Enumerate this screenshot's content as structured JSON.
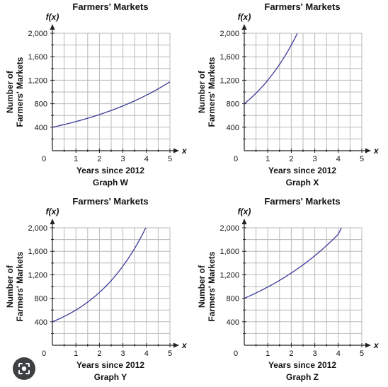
{
  "chart_data": [
    {
      "type": "line",
      "title": "Farmers' Markets",
      "caption": "Graph W",
      "xlabel": "Years since 2012",
      "ylabel": [
        "Number of",
        "Farmers' Markets"
      ],
      "function_label": "f(x)",
      "x_axis_letter": "x",
      "origin_label": "0",
      "xlim": [
        0,
        5
      ],
      "ylim": [
        0,
        2000
      ],
      "x_ticks": [
        "1",
        "2",
        "3",
        "4",
        "5"
      ],
      "y_ticks": [
        "400",
        "800",
        "1,200",
        "1,600",
        "2,000"
      ],
      "grid": true,
      "series": [
        {
          "x": [
            0,
            1,
            2,
            3,
            4,
            5
          ],
          "y": [
            400,
            496,
            615,
            763,
            946,
            1173
          ]
        }
      ]
    },
    {
      "type": "line",
      "title": "Farmers' Markets",
      "caption": "Graph X",
      "xlabel": "Years since 2012",
      "ylabel": [
        "Number of",
        "Farmers' Markets"
      ],
      "function_label": "f(x)",
      "x_axis_letter": "x",
      "origin_label": "0",
      "xlim": [
        0,
        5
      ],
      "ylim": [
        0,
        2000
      ],
      "x_ticks": [
        "1",
        "2",
        "3",
        "4",
        "5"
      ],
      "y_ticks": [
        "400",
        "800",
        "1,200",
        "1,600",
        "2,000"
      ],
      "grid": true,
      "series": [
        {
          "x": [
            0,
            0.5,
            1,
            1.5,
            2,
            2.26
          ],
          "y": [
            800,
            980,
            1200,
            1470,
            1800,
            2000
          ]
        }
      ]
    },
    {
      "type": "line",
      "title": "Farmers' Markets",
      "caption": "Graph Y",
      "xlabel": "Years since 2012",
      "ylabel": [
        "Number of",
        "Farmers' Markets"
      ],
      "function_label": "f(x)",
      "x_axis_letter": "x",
      "origin_label": "0",
      "xlim": [
        0,
        5
      ],
      "ylim": [
        0,
        2000
      ],
      "x_ticks": [
        "1",
        "2",
        "3",
        "4",
        "5"
      ],
      "y_ticks": [
        "400",
        "800",
        "1,200",
        "1,600",
        "2,000"
      ],
      "grid": true,
      "series": [
        {
          "x": [
            0,
            0.5,
            1,
            1.5,
            2,
            2.5,
            3,
            3.5,
            3.97
          ],
          "y": [
            400,
            490,
            600,
            735,
            900,
            1100,
            1350,
            1650,
            2000
          ]
        }
      ]
    },
    {
      "type": "line",
      "title": "Farmers' Markets",
      "caption": "Graph Z",
      "xlabel": "Years since 2012",
      "ylabel": [
        "Number of",
        "Farmers' Markets"
      ],
      "function_label": "f(x)",
      "x_axis_letter": "x",
      "origin_label": "0",
      "xlim": [
        0,
        5
      ],
      "ylim": [
        0,
        2000
      ],
      "x_ticks": [
        "1",
        "2",
        "3",
        "4",
        "5"
      ],
      "y_ticks": [
        "400",
        "800",
        "1,200",
        "1,600",
        "2,000"
      ],
      "grid": true,
      "series": [
        {
          "x": [
            0,
            1,
            2,
            3,
            4,
            4.13
          ],
          "y": [
            800,
            992,
            1230,
            1525,
            1891,
            2000
          ]
        }
      ]
    }
  ],
  "theme": {
    "curve_color": "#3a3a9a",
    "grid_color": "#b9b9b9",
    "axis_color": "#222222",
    "lens_bg": "#3c4043"
  },
  "lens_button": {
    "icon": "lens-icon"
  }
}
